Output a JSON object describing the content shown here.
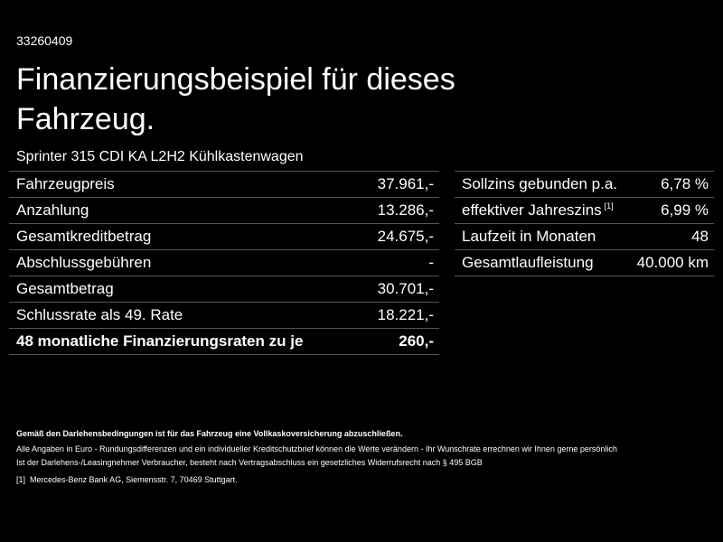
{
  "header": {
    "id": "33260409",
    "title": "Finanzierungsbeispiel für dieses Fahrzeug.",
    "subtitle": "Sprinter 315 CDI KA L2H2 Kühlkastenwagen"
  },
  "left_table": {
    "rows": [
      {
        "label": "Fahrzeugpreis",
        "value": "37.961,-"
      },
      {
        "label": "Anzahlung",
        "value": "13.286,-"
      },
      {
        "label": "Gesamtkreditbetrag",
        "value": "24.675,-"
      },
      {
        "label": "Abschlussgebühren",
        "value": "-"
      },
      {
        "label": "Gesamtbetrag",
        "value": "30.701,-"
      },
      {
        "label": "Schlussrate als 49. Rate",
        "value": "18.221,-"
      },
      {
        "label": "48 monatliche Finanzierungsraten zu je",
        "value": "260,-"
      }
    ]
  },
  "right_table": {
    "rows": [
      {
        "label": "Sollzins gebunden p.a.",
        "value": "6,78 %"
      },
      {
        "label": "effektiver Jahreszins",
        "note": "[1]",
        "value": "6,99 %"
      },
      {
        "label": "Laufzeit in Monaten",
        "value": "48"
      },
      {
        "label": "Gesamtlaufleistung",
        "value": "40.000 km"
      }
    ]
  },
  "footer": {
    "bold": "Gemäß den Darlehensbedingungen ist für das Fahrzeug eine Vollkaskoversicherung abzuschließen.",
    "lines": [
      "Alle Angaben in Euro - Rundungsdifferenzen und ein individueller Kreditschutzbrief können die Werte verändern - Ihr Wunschrate errechnen wir Ihnen gerne persönlich",
      "Ist der Darlehens-/Leasingnehmer Verbraucher, besteht nach Vertragsabschluss ein gesetzliches Widerrufsrecht nach § 495 BGB"
    ],
    "note_marker": "[1]",
    "note": "Mercedes-Benz Bank AG, Siemensstr. 7, 70469 Stuttgart."
  }
}
